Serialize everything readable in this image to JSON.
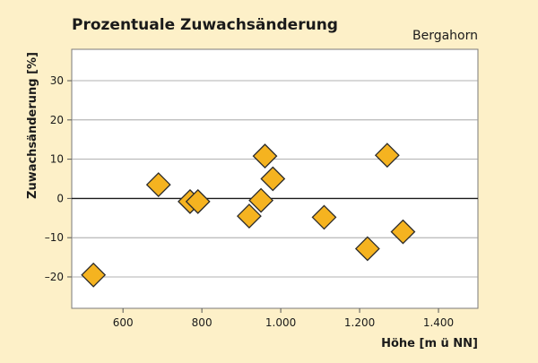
{
  "chart_data": {
    "type": "scatter",
    "title": "Prozentuale Zuwachsänderung",
    "subtitle": "Bergahorn",
    "xlabel": "Höhe [m ü NN]",
    "ylabel": "Zuwachsänderung [%]",
    "xlim": [
      470,
      1500
    ],
    "ylim": [
      -28,
      38
    ],
    "xticks": [
      600,
      800,
      1000,
      1200,
      1400
    ],
    "xtick_labels": [
      "600",
      "800",
      "1.000",
      "1.200",
      "1.400"
    ],
    "yticks": [
      -20,
      -10,
      0,
      10,
      20,
      30
    ],
    "ytick_labels": [
      "–20",
      "–10",
      "0",
      "10",
      "20",
      "30"
    ],
    "grid": true,
    "marker": "diamond",
    "colors": {
      "marker_fill": "#f5b320",
      "marker_stroke": "#2b2b2b",
      "background": "#fdf0c8",
      "plot_bg": "#ffffff",
      "gridline": "#999999"
    },
    "points": [
      {
        "x": 525,
        "y": -19.5
      },
      {
        "x": 690,
        "y": 3.5
      },
      {
        "x": 770,
        "y": -0.8
      },
      {
        "x": 790,
        "y": -0.8
      },
      {
        "x": 920,
        "y": -4.5
      },
      {
        "x": 950,
        "y": -0.5
      },
      {
        "x": 960,
        "y": 10.8
      },
      {
        "x": 980,
        "y": 5.0
      },
      {
        "x": 1110,
        "y": -4.8
      },
      {
        "x": 1220,
        "y": -12.8
      },
      {
        "x": 1270,
        "y": 11.0
      },
      {
        "x": 1310,
        "y": -8.5
      }
    ]
  }
}
